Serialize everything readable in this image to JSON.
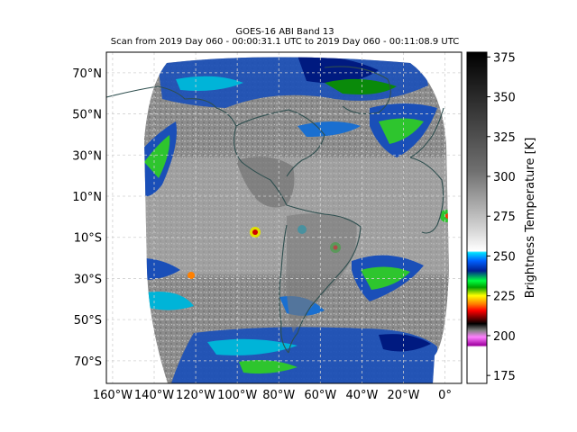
{
  "chart_data": {
    "type": "heatmap",
    "title": "GOES-16 ABI Band 13",
    "subtitle": "Scan from 2019 Day 060 - 00:00:31.1 UTC to 2019 Day 060 - 00:11:08.9 UTC",
    "projection": "plate-carree full-disk",
    "x_ticks": [
      "160°W",
      "140°W",
      "120°W",
      "100°W",
      "80°W",
      "60°W",
      "40°W",
      "20°W",
      "0°"
    ],
    "x_tick_values": [
      -160,
      -140,
      -120,
      -100,
      -80,
      -60,
      -40,
      -20,
      0
    ],
    "y_ticks": [
      "70°N",
      "50°N",
      "30°N",
      "10°N",
      "10°S",
      "30°S",
      "50°S",
      "70°S"
    ],
    "y_tick_values": [
      70,
      50,
      30,
      10,
      -10,
      -30,
      -50,
      -70
    ],
    "xlim": [
      -163,
      8
    ],
    "ylim": [
      -81,
      80
    ],
    "grid": true,
    "colorbar": {
      "label": "Brightness Temperature [K]",
      "ticks": [
        "375",
        "350",
        "325",
        "300",
        "275",
        "250",
        "225",
        "200",
        "175"
      ],
      "tick_values": [
        375,
        350,
        325,
        300,
        275,
        250,
        225,
        200,
        175
      ],
      "range": [
        170,
        378
      ]
    }
  },
  "colors": {
    "space": "#ffffff",
    "coast": "#2f4f4f",
    "warm_ocean": "#8f8f8f",
    "cold_cloud": "#0000a0"
  }
}
